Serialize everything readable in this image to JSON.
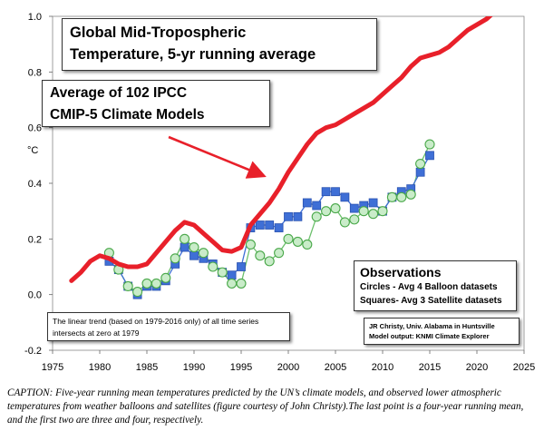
{
  "chart_data": {
    "type": "line",
    "title_line1": "Global Mid-Tropospheric",
    "title_line2": "Temperature, 5-yr running average",
    "ylabel": "°C",
    "xlim": [
      1975,
      2025
    ],
    "ylim": [
      -0.2,
      1.0
    ],
    "xticks": [
      "1975",
      "1980",
      "1985",
      "1990",
      "1995",
      "2000",
      "2005",
      "2010",
      "2015",
      "2020",
      "2025"
    ],
    "yticks": [
      "-0.2",
      "0.0",
      "0.2",
      "0.4",
      "0.6",
      "0.8",
      "1.0"
    ],
    "grid": false,
    "models_label_line1": "Average of 102 IPCC",
    "models_label_line2": "CMIP-5 Climate Models",
    "series": [
      {
        "name": "Average of 102 IPCC CMIP-5 Climate Models",
        "style": "line",
        "color": "#e8202a",
        "x": [
          1977,
          1978,
          1979,
          1980,
          1981,
          1982,
          1983,
          1984,
          1985,
          1986,
          1987,
          1988,
          1989,
          1990,
          1991,
          1992,
          1993,
          1994,
          1995,
          1996,
          1997,
          1998,
          1999,
          2000,
          2001,
          2002,
          2003,
          2004,
          2005,
          2006,
          2007,
          2008,
          2009,
          2010,
          2011,
          2012,
          2013,
          2014,
          2015,
          2016,
          2017,
          2018,
          2019,
          2020,
          2021,
          2022
        ],
        "y": [
          0.05,
          0.08,
          0.12,
          0.14,
          0.13,
          0.11,
          0.1,
          0.1,
          0.11,
          0.15,
          0.19,
          0.23,
          0.26,
          0.25,
          0.22,
          0.19,
          0.16,
          0.155,
          0.17,
          0.25,
          0.29,
          0.33,
          0.38,
          0.44,
          0.49,
          0.54,
          0.58,
          0.6,
          0.61,
          0.63,
          0.65,
          0.67,
          0.69,
          0.72,
          0.75,
          0.78,
          0.82,
          0.85,
          0.86,
          0.87,
          0.89,
          0.92,
          0.95,
          0.97,
          0.99,
          1.02
        ]
      },
      {
        "name": "Circles - Avg 4 Balloon datasets",
        "style": "circle",
        "color": "#6cc06c",
        "x": [
          1981,
          1982,
          1983,
          1984,
          1985,
          1986,
          1987,
          1988,
          1989,
          1990,
          1991,
          1992,
          1993,
          1994,
          1995,
          1996,
          1997,
          1998,
          1999,
          2000,
          2001,
          2002,
          2003,
          2004,
          2005,
          2006,
          2007,
          2008,
          2009,
          2010,
          2011,
          2012,
          2013,
          2014,
          2015
        ],
        "y": [
          0.15,
          0.09,
          0.03,
          0.01,
          0.04,
          0.04,
          0.06,
          0.13,
          0.2,
          0.17,
          0.15,
          0.1,
          0.08,
          0.04,
          0.04,
          0.18,
          0.14,
          0.12,
          0.15,
          0.2,
          0.19,
          0.18,
          0.28,
          0.3,
          0.31,
          0.26,
          0.27,
          0.3,
          0.29,
          0.3,
          0.35,
          0.35,
          0.36,
          0.47,
          0.54
        ]
      },
      {
        "name": "Squares- Avg 3 Satellite datasets",
        "style": "square",
        "color": "#3f6fd6",
        "x": [
          1981,
          1982,
          1983,
          1984,
          1985,
          1986,
          1987,
          1988,
          1989,
          1990,
          1991,
          1992,
          1993,
          1994,
          1995,
          1996,
          1997,
          1998,
          1999,
          2000,
          2001,
          2002,
          2003,
          2004,
          2005,
          2006,
          2007,
          2008,
          2009,
          2010,
          2011,
          2012,
          2013,
          2014,
          2015
        ],
        "y": [
          0.12,
          0.09,
          0.03,
          0.0,
          0.03,
          0.03,
          0.05,
          0.11,
          0.17,
          0.14,
          0.13,
          0.11,
          0.08,
          0.07,
          0.1,
          0.24,
          0.25,
          0.25,
          0.24,
          0.28,
          0.28,
          0.33,
          0.32,
          0.37,
          0.37,
          0.35,
          0.31,
          0.32,
          0.33,
          0.3,
          0.35,
          0.37,
          0.38,
          0.44,
          0.5
        ]
      }
    ],
    "observations_title": "Observations",
    "observations_line1": "Circles - Avg 4 Balloon datasets",
    "observations_line2": "Squares- Avg 3 Satellite datasets",
    "trend_note": "The linear trend (based on 1979-2016 only) of all time series intersects at zero at 1979",
    "credit_line1": "JR Christy, Univ. Alabama in Huntsville",
    "credit_line2": "Model output: KNMI Climate Explorer"
  },
  "caption": "CAPTION: Five-year running mean temperatures predicted by the UN’s climate models, and observed lower atmospheric temperatures from weather balloons and satellites (figure courtesy of John Christy).The last point is a four-year running mean, and the first two are three and four, respectively."
}
